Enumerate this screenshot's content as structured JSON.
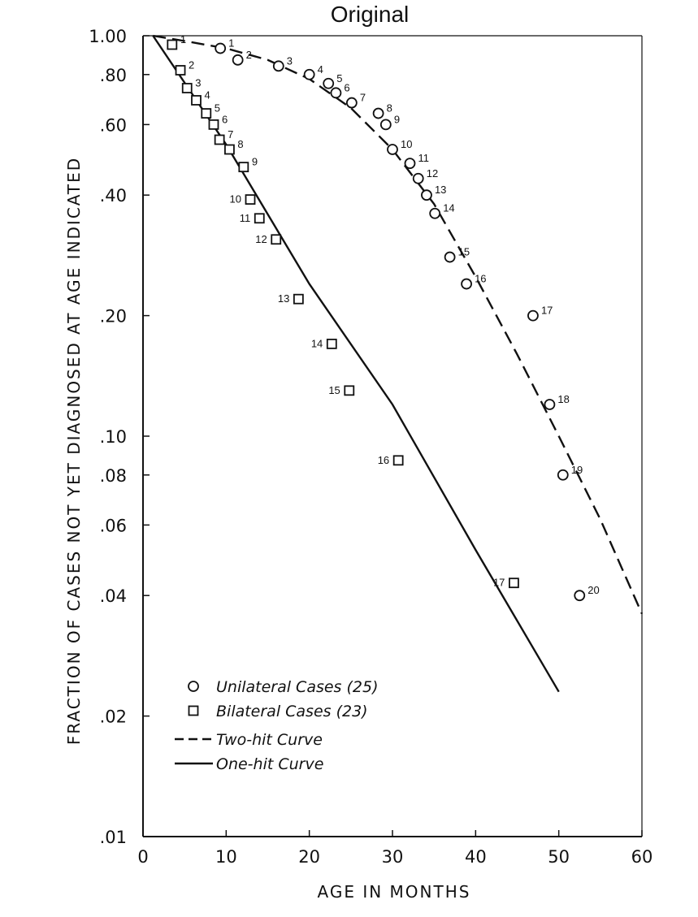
{
  "chart_data": {
    "type": "scatter",
    "title": "Original",
    "xlabel": "AGE IN MONTHS",
    "ylabel": "FRACTION OF CASES NOT YET DIAGNOSED AT AGE INDICATED",
    "xlim": [
      0,
      60
    ],
    "ylim": [
      0.01,
      1.0
    ],
    "yscale": "log",
    "grid": false,
    "legend_position": "bottom-left",
    "x_ticks": [
      {
        "value": 0,
        "label": "0"
      },
      {
        "value": 10,
        "label": "10"
      },
      {
        "value": 20,
        "label": "20"
      },
      {
        "value": 30,
        "label": "30"
      },
      {
        "value": 40,
        "label": "40"
      },
      {
        "value": 50,
        "label": "50"
      },
      {
        "value": 60,
        "label": "60"
      }
    ],
    "y_ticks": [
      {
        "value": 1.0,
        "label": "1.00"
      },
      {
        "value": 0.8,
        "label": ".80"
      },
      {
        "value": 0.6,
        "label": ".60"
      },
      {
        "value": 0.4,
        "label": ".40"
      },
      {
        "value": 0.2,
        "label": ".20"
      },
      {
        "value": 0.1,
        "label": ".10"
      },
      {
        "value": 0.08,
        "label": ".08"
      },
      {
        "value": 0.06,
        "label": ".06"
      },
      {
        "value": 0.04,
        "label": ".04"
      },
      {
        "value": 0.02,
        "label": ".02"
      },
      {
        "value": 0.01,
        "label": ".01"
      }
    ],
    "series": [
      {
        "name": "Unilateral Cases (25)",
        "marker": "circle",
        "points": [
          {
            "label": "1",
            "x": 9.3,
            "y": 0.93
          },
          {
            "label": "2",
            "x": 11.4,
            "y": 0.87
          },
          {
            "label": "3",
            "x": 16.3,
            "y": 0.84
          },
          {
            "label": "4",
            "x": 20.0,
            "y": 0.8
          },
          {
            "label": "5",
            "x": 22.3,
            "y": 0.76
          },
          {
            "label": "6",
            "x": 23.2,
            "y": 0.72
          },
          {
            "label": "7",
            "x": 25.1,
            "y": 0.68
          },
          {
            "label": "8",
            "x": 28.3,
            "y": 0.64
          },
          {
            "label": "9",
            "x": 29.2,
            "y": 0.6
          },
          {
            "label": "10",
            "x": 30.0,
            "y": 0.52
          },
          {
            "label": "11",
            "x": 32.1,
            "y": 0.48
          },
          {
            "label": "12",
            "x": 33.1,
            "y": 0.44
          },
          {
            "label": "13",
            "x": 34.1,
            "y": 0.4
          },
          {
            "label": "14",
            "x": 35.1,
            "y": 0.36
          },
          {
            "label": "15",
            "x": 36.9,
            "y": 0.28
          },
          {
            "label": "16",
            "x": 38.9,
            "y": 0.24
          },
          {
            "label": "17",
            "x": 46.9,
            "y": 0.2
          },
          {
            "label": "18",
            "x": 48.9,
            "y": 0.12
          },
          {
            "label": "19",
            "x": 50.5,
            "y": 0.08
          },
          {
            "label": "20",
            "x": 52.5,
            "y": 0.04
          }
        ]
      },
      {
        "name": "Bilateral Cases (23)",
        "marker": "square",
        "points": [
          {
            "label": "1",
            "x": 3.5,
            "y": 0.95
          },
          {
            "label": "2",
            "x": 4.5,
            "y": 0.82
          },
          {
            "label": "3",
            "x": 5.3,
            "y": 0.74
          },
          {
            "label": "4",
            "x": 6.4,
            "y": 0.69
          },
          {
            "label": "5",
            "x": 7.6,
            "y": 0.64
          },
          {
            "label": "6",
            "x": 8.5,
            "y": 0.6
          },
          {
            "label": "7",
            "x": 9.2,
            "y": 0.55
          },
          {
            "label": "8",
            "x": 10.4,
            "y": 0.52
          },
          {
            "label": "9",
            "x": 12.1,
            "y": 0.47
          },
          {
            "label": "10",
            "x": 12.9,
            "y": 0.39
          },
          {
            "label": "11",
            "x": 14.0,
            "y": 0.35
          },
          {
            "label": "12",
            "x": 16.0,
            "y": 0.31
          },
          {
            "label": "13",
            "x": 18.7,
            "y": 0.22
          },
          {
            "label": "14",
            "x": 22.7,
            "y": 0.17
          },
          {
            "label": "15",
            "x": 24.8,
            "y": 0.13
          },
          {
            "label": "16",
            "x": 30.7,
            "y": 0.087
          },
          {
            "label": "17",
            "x": 44.6,
            "y": 0.043
          }
        ]
      }
    ],
    "curves": [
      {
        "name": "Two-hit Curve",
        "style": "dashed",
        "points": [
          [
            1.2,
            1.0
          ],
          [
            5,
            0.97
          ],
          [
            10,
            0.93
          ],
          [
            15,
            0.87
          ],
          [
            20,
            0.78
          ],
          [
            25,
            0.66
          ],
          [
            30,
            0.52
          ],
          [
            35,
            0.38
          ],
          [
            40,
            0.25
          ],
          [
            45,
            0.16
          ],
          [
            50,
            0.1
          ],
          [
            55,
            0.062
          ],
          [
            60,
            0.036
          ]
        ]
      },
      {
        "name": "One-hit Curve",
        "style": "solid",
        "points": [
          [
            1.2,
            1.0
          ],
          [
            10,
            0.535
          ],
          [
            20,
            0.24
          ],
          [
            30,
            0.12
          ],
          [
            40,
            0.052
          ],
          [
            50,
            0.023
          ]
        ]
      }
    ]
  }
}
